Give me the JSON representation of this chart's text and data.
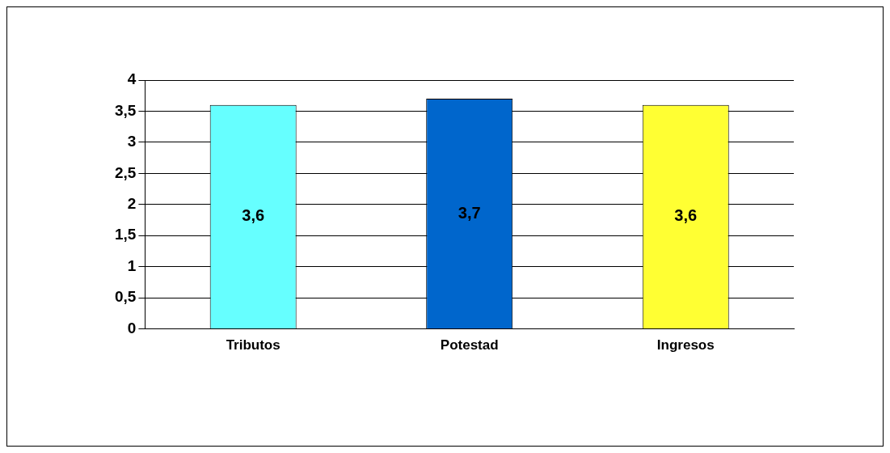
{
  "chart_data": {
    "type": "bar",
    "categories": [
      "Tributos",
      "Potestad",
      "Ingresos"
    ],
    "values": [
      3.6,
      3.7,
      3.6
    ],
    "colors": [
      "#66ffff",
      "#0066cc",
      "#ffff33"
    ],
    "value_labels": [
      "3,6",
      "3,7",
      "3,6"
    ],
    "ylim": [
      0,
      4
    ],
    "yticks": [
      0,
      {
        "value": 0.5,
        "label": "0,5"
      },
      1,
      {
        "value": 1.5,
        "label": "1,5"
      },
      2,
      {
        "value": 2.5,
        "label": "2,5"
      },
      3,
      {
        "value": 3.5,
        "label": "3,5"
      },
      4
    ],
    "grid": "y",
    "legend": false
  }
}
